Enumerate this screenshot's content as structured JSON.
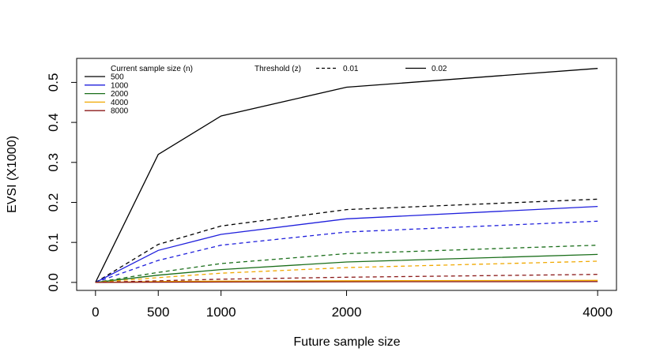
{
  "chart_data": {
    "type": "line",
    "title": "",
    "xlabel": "Future sample size",
    "ylabel": "EVSI (X1000)",
    "x": [
      0,
      500,
      1000,
      2000,
      4000
    ],
    "xticks": [
      0,
      500,
      1000,
      2000,
      4000
    ],
    "yticks": [
      0.0,
      0.1,
      0.2,
      0.3,
      0.4,
      0.5
    ],
    "ytick_labels": [
      "0.0",
      "0.1",
      "0.2",
      "0.3",
      "0.4",
      "0.5"
    ],
    "xlim": [
      -150,
      4150
    ],
    "ylim": [
      -0.02,
      0.56
    ],
    "grid": false,
    "legend_placement": "top-left",
    "legend": {
      "sample_title": "Current sample size (n)",
      "threshold_title": "Threshold (z)",
      "sample_entries": [
        {
          "label": "500",
          "color": "#000000"
        },
        {
          "label": "1000",
          "color": "#1f1fdc"
        },
        {
          "label": "2000",
          "color": "#1a6e1a"
        },
        {
          "label": "4000",
          "color": "#f0a800"
        },
        {
          "label": "8000",
          "color": "#8b1a1a"
        }
      ],
      "threshold_entries": [
        {
          "label": "0.01",
          "dash": "dashed"
        },
        {
          "label": "0.02",
          "dash": "solid"
        }
      ]
    },
    "series": [
      {
        "n": "500",
        "z": "0.02",
        "color": "#000000",
        "dash": "solid",
        "values": [
          0,
          0.32,
          0.416,
          0.488,
          0.535
        ]
      },
      {
        "n": "500",
        "z": "0.01",
        "color": "#000000",
        "dash": "dashed",
        "values": [
          0,
          0.095,
          0.141,
          0.182,
          0.208
        ]
      },
      {
        "n": "1000",
        "z": "0.02",
        "color": "#1f1fdc",
        "dash": "solid",
        "values": [
          0,
          0.08,
          0.12,
          0.159,
          0.19
        ]
      },
      {
        "n": "1000",
        "z": "0.01",
        "color": "#1f1fdc",
        "dash": "dashed",
        "values": [
          0,
          0.055,
          0.093,
          0.126,
          0.153
        ]
      },
      {
        "n": "2000",
        "z": "0.01",
        "color": "#1a6e1a",
        "dash": "dashed",
        "values": [
          0,
          0.025,
          0.047,
          0.072,
          0.093
        ]
      },
      {
        "n": "2000",
        "z": "0.02",
        "color": "#1a6e1a",
        "dash": "solid",
        "values": [
          0,
          0.018,
          0.032,
          0.051,
          0.07
        ]
      },
      {
        "n": "4000",
        "z": "0.01",
        "color": "#f0a800",
        "dash": "dashed",
        "values": [
          0,
          0.012,
          0.023,
          0.037,
          0.053
        ]
      },
      {
        "n": "4000",
        "z": "0.02",
        "color": "#f0a800",
        "dash": "solid",
        "values": [
          0,
          0.002,
          0.003,
          0.004,
          0.005
        ]
      },
      {
        "n": "8000",
        "z": "0.01",
        "color": "#8b1a1a",
        "dash": "dashed",
        "values": [
          0,
          0.004,
          0.008,
          0.013,
          0.02
        ]
      },
      {
        "n": "8000",
        "z": "0.02",
        "color": "#8b1a1a",
        "dash": "solid",
        "values": [
          0,
          0.0005,
          0.001,
          0.0015,
          0.002
        ]
      }
    ]
  }
}
